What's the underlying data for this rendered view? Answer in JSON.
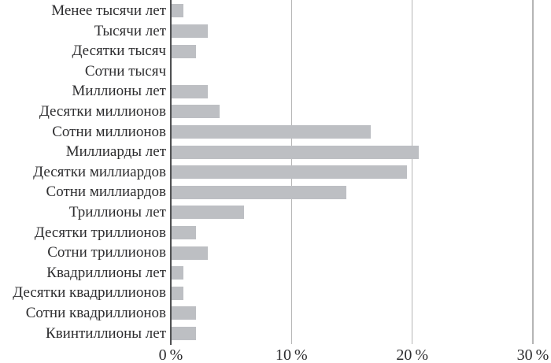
{
  "chart_data": {
    "type": "bar",
    "orientation": "horizontal",
    "title": "",
    "xlabel": "",
    "ylabel": "",
    "unit": "%",
    "xlim": [
      0,
      30
    ],
    "grid": "vertical-gridlines-at-x-ticks",
    "legend": "none",
    "categories": [
      "Менее тысячи лет",
      "Тысячи лет",
      "Десятки тысяч",
      "Сотни тысяч",
      "Миллионы лет",
      "Десятки миллионов",
      "Сотни миллионов",
      "Миллиарды лет",
      "Десятки миллиардов",
      "Сотни миллиардов",
      "Триллионы лет",
      "Десятки триллионов",
      "Сотни триллионов",
      "Квадриллионы лет",
      "Десятки квадриллионов",
      "Сотни квадриллионов",
      "Квинтиллионы лет"
    ],
    "values": [
      1,
      3,
      2,
      0,
      3,
      4,
      16.5,
      20.5,
      19.5,
      14.5,
      6,
      2,
      3,
      1,
      1,
      2,
      2
    ],
    "x_ticks": [
      {
        "value": 0,
        "label": "0 %"
      },
      {
        "value": 10,
        "label": "10 %"
      },
      {
        "value": 20,
        "label": "20 %"
      },
      {
        "value": 30,
        "label": "30 %"
      }
    ],
    "colors": {
      "bar": "#bdbfc3",
      "axis_line": "#4f5052",
      "gridline": "#b5b5b5",
      "text": "#2d2d2f",
      "background": "#ffffff"
    }
  }
}
